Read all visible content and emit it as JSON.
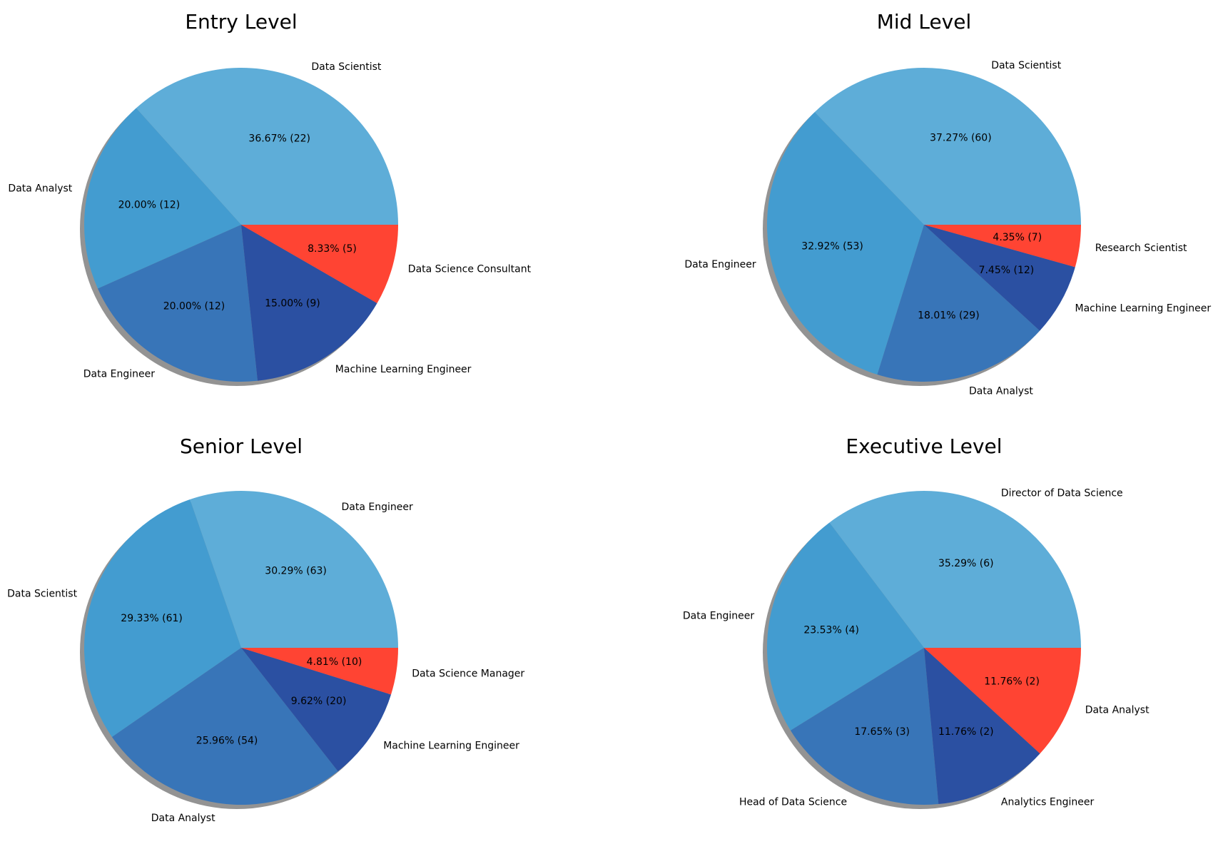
{
  "colors": [
    "#5eadd8",
    "#439cd0",
    "#3875b8",
    "#2b50a2",
    "#ff4433"
  ],
  "shadow_color": "#808080",
  "chart_data": [
    {
      "type": "pie",
      "title": "Entry Level",
      "labels": [
        "Data Scientist",
        "Data Analyst",
        "Data Engineer",
        "Machine Learning Engineer",
        "Data Science Consultant"
      ],
      "values": [
        22,
        12,
        12,
        9,
        5
      ],
      "percent_labels": [
        "36.67%  (22)",
        "20.00%  (12)",
        "20.00%  (12)",
        "15.00%  (9)",
        "8.33%  (5)"
      ],
      "start_angle_deg": 0,
      "direction": "counterclockwise",
      "shadow": true
    },
    {
      "type": "pie",
      "title": "Mid Level",
      "labels": [
        "Data Scientist",
        "Data Engineer",
        "Data Analyst",
        "Machine Learning Engineer",
        "Research Scientist"
      ],
      "values": [
        60,
        53,
        29,
        12,
        7
      ],
      "percent_labels": [
        "37.27%  (60)",
        "32.92%  (53)",
        "18.01%  (29)",
        "7.45%  (12)",
        "4.35%  (7)"
      ],
      "start_angle_deg": 0,
      "direction": "counterclockwise",
      "shadow": true
    },
    {
      "type": "pie",
      "title": "Senior Level",
      "labels": [
        "Data Engineer",
        "Data Scientist",
        "Data Analyst",
        "Machine Learning Engineer",
        "Data Science Manager"
      ],
      "values": [
        63,
        61,
        54,
        20,
        10
      ],
      "percent_labels": [
        "30.29%  (63)",
        "29.33%  (61)",
        "25.96%  (54)",
        "9.62%  (20)",
        "4.81%  (10)"
      ],
      "start_angle_deg": 0,
      "direction": "counterclockwise",
      "shadow": true
    },
    {
      "type": "pie",
      "title": "Executive Level",
      "labels": [
        "Director of Data Science",
        "Data Engineer",
        "Head of Data Science",
        "Analytics Engineer",
        "Data Analyst"
      ],
      "values": [
        6,
        4,
        3,
        2,
        2
      ],
      "percent_labels": [
        "35.29%  (6)",
        "23.53%  (4)",
        "17.65%  (3)",
        "11.76%  (2)",
        "11.76%  (2)"
      ],
      "start_angle_deg": 0,
      "direction": "counterclockwise",
      "shadow": true
    }
  ]
}
